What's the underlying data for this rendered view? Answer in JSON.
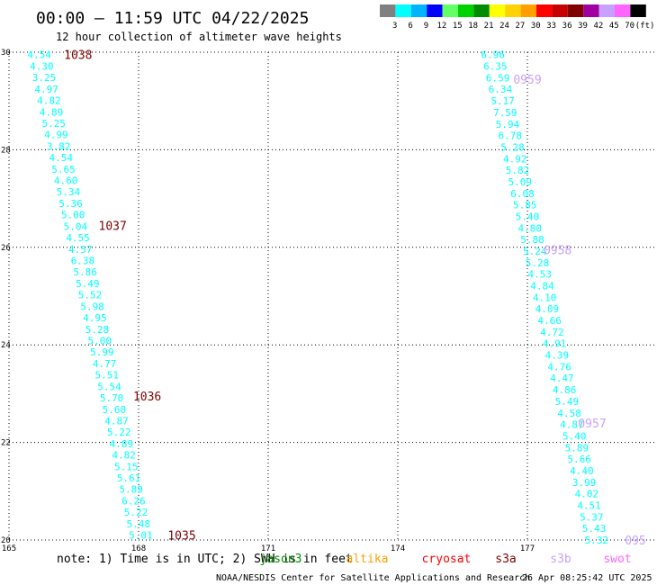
{
  "header": {
    "title": "00:00 — 11:59 UTC 04/22/2025",
    "subtitle": "12 hour collection of altimeter wave heights"
  },
  "legend": {
    "bins": [
      {
        "label": "3",
        "color": "#808080"
      },
      {
        "label": "6",
        "color": "#00ffff"
      },
      {
        "label": "9",
        "color": "#00b4ff"
      },
      {
        "label": "12",
        "color": "#0000ff"
      },
      {
        "label": "15",
        "color": "#64ff64"
      },
      {
        "label": "18",
        "color": "#00d200"
      },
      {
        "label": "21",
        "color": "#008c00"
      },
      {
        "label": "24",
        "color": "#ffff00"
      },
      {
        "label": "27",
        "color": "#ffd200"
      },
      {
        "label": "30",
        "color": "#ffa000"
      },
      {
        "label": "33",
        "color": "#ff0000"
      },
      {
        "label": "36",
        "color": "#c80000"
      },
      {
        "label": "39",
        "color": "#800000"
      },
      {
        "label": "42",
        "color": "#a000a0"
      },
      {
        "label": "45",
        "color": "#c8a0ff"
      },
      {
        "label": "70",
        "color": "#ff64ff"
      },
      {
        "label": "",
        "color": "#000000"
      }
    ],
    "unit": "(ft)"
  },
  "footer": {
    "note": "note: 1) Time is in UTC; 2) SWH is in feet",
    "satellites": [
      {
        "name": "jason3",
        "color": "#008c00"
      },
      {
        "name": "altika",
        "color": "#ffa000"
      },
      {
        "name": "cryosat",
        "color": "#ff0000"
      },
      {
        "name": "s3a",
        "color": "#800000"
      },
      {
        "name": "s3b",
        "color": "#c8a0ff"
      },
      {
        "name": "swot",
        "color": "#ff64ff"
      }
    ],
    "credit": "NOAA/NESDIS Center for Satellite Applications and Research",
    "timestamp": "26 Apr 08:25:42 UTC 2025"
  },
  "chart_data": {
    "type": "scatter",
    "x_range": [
      165,
      180
    ],
    "y_range": [
      20,
      30
    ],
    "x_ticks": [
      "165",
      "168",
      "171",
      "174",
      "177"
    ],
    "y_ticks": [
      "20",
      "22",
      "24",
      "26",
      "28",
      "30"
    ],
    "grid": true,
    "value_color": "#00ffff",
    "tracks": [
      {
        "satellite": "s3a",
        "color": "#800000",
        "start": {
          "lon": 165.7,
          "lat": 29.95
        },
        "end": {
          "lon": 168.05,
          "lat": 20.1
        },
        "values": [
          "4.54",
          "4.30",
          "3.25",
          "4.97",
          "4.82",
          "4.89",
          "5.25",
          "4.99",
          "3.82",
          "4.54",
          "5.65",
          "4.60",
          "5.34",
          "5.36",
          "5.00",
          "5.04",
          "4.55",
          "4.57",
          "6.38",
          "5.86",
          "5.49",
          "5.52",
          "5.98",
          "4.95",
          "5.28",
          "5.00",
          "5.99",
          "4.77",
          "5.51",
          "5.54",
          "5.70",
          "5.60",
          "4.87",
          "5.22",
          "4.89",
          "4.82",
          "5.15",
          "5.61",
          "5.89",
          "6.26",
          "5.22",
          "5.48",
          "5.01"
        ],
        "time_labels": [
          {
            "text": "1038",
            "lat": 29.95,
            "lon": 166.6
          },
          {
            "text": "1037",
            "lat": 26.45,
            "lon": 167.4
          },
          {
            "text": "1036",
            "lat": 22.95,
            "lon": 168.2
          },
          {
            "text": "1035",
            "lat": 20.1,
            "lon": 169.0
          }
        ]
      },
      {
        "satellite": "s3b",
        "color": "#c8a0ff",
        "start": {
          "lon": 176.2,
          "lat": 29.95
        },
        "end": {
          "lon": 178.6,
          "lat": 20.0
        },
        "values": [
          "6.96",
          "6.35",
          "6.59",
          "6.34",
          "5.17",
          "7.59",
          "5.94",
          "6.78",
          "5.28",
          "4.92",
          "5.82",
          "5.09",
          "6.08",
          "5.85",
          "5.40",
          "4.80",
          "5.88",
          "5.24",
          "5.28",
          "4.53",
          "4.84",
          "4.10",
          "4.09",
          "4.66",
          "4.72",
          "4.91",
          "4.39",
          "4.76",
          "4.47",
          "4.86",
          "5.49",
          "4.58",
          "4.87",
          "5.40",
          "5.89",
          "5.66",
          "4.40",
          "3.99",
          "4.02",
          "4.51",
          "5.37",
          "5.43",
          "5.32"
        ],
        "time_labels": [
          {
            "text": "0959",
            "lat": 29.45,
            "lon": 177.0
          },
          {
            "text": "0958",
            "lat": 25.95,
            "lon": 177.7
          },
          {
            "text": "0957",
            "lat": 22.4,
            "lon": 178.5
          },
          {
            "text": "095",
            "lat": 20.0,
            "lon": 179.5
          }
        ]
      }
    ]
  }
}
